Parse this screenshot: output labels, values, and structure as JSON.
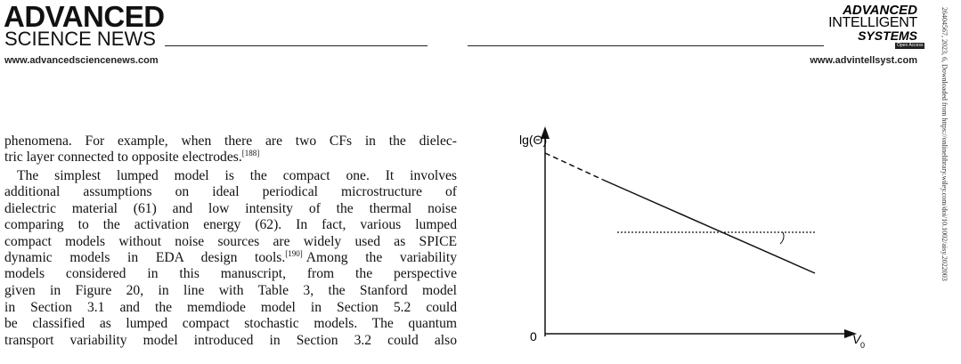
{
  "header": {
    "left_logo": [
      "ADVANCED",
      "SCIENCE NEWS"
    ],
    "left_url": "www.advancedsciencenews.com",
    "right_logo": [
      "ADVANCED",
      "INTELLIGENT",
      "SYSTEMS"
    ],
    "right_badge": "Open Access",
    "right_url": "www.advintellsyst.com"
  },
  "side_note": "26404567, 2023, 6, Downloaded from https://onlinelibrary.wiley.com/doi/10.1002/aisy.2022003",
  "body": {
    "lines": [
      {
        "text": "phenomena. For example, when there are two CFs in the dielec-"
      },
      {
        "text": "tric layer connected to opposite electrodes.",
        "ref": "[188]"
      },
      {
        "text": "The simplest lumped model is the compact one. It involves"
      },
      {
        "text": "additional assumptions on ideal periodical microstructure of"
      },
      {
        "text": "dielectric material (61) and low intensity of the thermal noise"
      },
      {
        "text": "comparing to the activation energy (62). In fact, various lumped"
      },
      {
        "text": "compact models without noise sources are widely used as SPICE"
      },
      {
        "text": "dynamic models in EDA design tools.",
        "ref": "[190]",
        "tail": "Among the variability"
      },
      {
        "text": "models considered in this manuscript, from the perspective"
      },
      {
        "text": "given in Figure 20, in line with Table 3, the Stanford model"
      },
      {
        "text": "in Section 3.1 and the memdiode model in Section 5.2 could"
      },
      {
        "text": "be classified as lumped compact stochastic models. The quantum"
      },
      {
        "text": "transport variability model introduced in Section 3.2 could also"
      }
    ]
  },
  "figure": {
    "y_label": "lg(Θ)",
    "origin": "0",
    "x_label": "V",
    "x_label_sub": "0"
  }
}
